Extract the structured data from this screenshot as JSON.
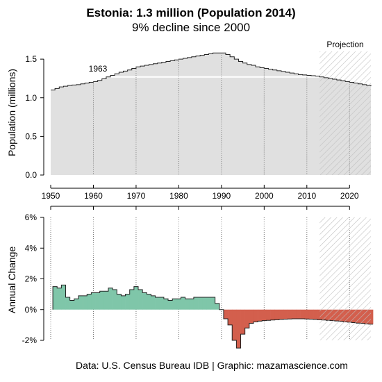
{
  "title": "Estonia: 1.3 million (Population 2014)",
  "subtitle": "9% decline since 2000",
  "caption": "Data: U.S. Census Bureau IDB | Graphic: mazamascience.com",
  "colors": {
    "population_fill": "#e0e0e0",
    "positive_change": "#7fc6a9",
    "negative_change": "#d35f4d",
    "projection_hatch": "#bfbfbf",
    "reference_line": "#ffffff"
  },
  "chart_data": [
    {
      "type": "area",
      "name": "population",
      "ylabel": "Population (millions)",
      "xlim": [
        1950,
        2025
      ],
      "ylim": [
        0,
        1.6
      ],
      "x_ticks": [
        "1950",
        "1960",
        "1970",
        "1980",
        "1990",
        "2000",
        "2010",
        "2020"
      ],
      "y_ticks": [
        "0.0",
        "0.5",
        "1.0",
        "1.5"
      ],
      "grid": "dotted vertical lines every 10 years",
      "projection_label": "Projection",
      "projection_start": 2013,
      "reference_label": "1963",
      "reference_value": 1.27,
      "x": [
        1950,
        1951,
        1952,
        1953,
        1954,
        1955,
        1956,
        1957,
        1958,
        1959,
        1960,
        1961,
        1962,
        1963,
        1964,
        1965,
        1966,
        1967,
        1968,
        1969,
        1970,
        1971,
        1972,
        1973,
        1974,
        1975,
        1976,
        1977,
        1978,
        1979,
        1980,
        1981,
        1982,
        1983,
        1984,
        1985,
        1986,
        1987,
        1988,
        1989,
        1990,
        1991,
        1992,
        1993,
        1994,
        1995,
        1996,
        1997,
        1998,
        1999,
        2000,
        2001,
        2002,
        2003,
        2004,
        2005,
        2006,
        2007,
        2008,
        2009,
        2010,
        2011,
        2012,
        2013,
        2014,
        2015,
        2016,
        2017,
        2018,
        2019,
        2020,
        2021,
        2022,
        2023,
        2024,
        2025
      ],
      "values": [
        1.1,
        1.12,
        1.14,
        1.15,
        1.16,
        1.165,
        1.17,
        1.18,
        1.19,
        1.2,
        1.21,
        1.225,
        1.245,
        1.27,
        1.29,
        1.31,
        1.33,
        1.345,
        1.36,
        1.38,
        1.4,
        1.41,
        1.42,
        1.43,
        1.44,
        1.45,
        1.46,
        1.47,
        1.48,
        1.49,
        1.5,
        1.51,
        1.52,
        1.53,
        1.54,
        1.55,
        1.56,
        1.57,
        1.58,
        1.58,
        1.58,
        1.56,
        1.53,
        1.5,
        1.47,
        1.45,
        1.43,
        1.42,
        1.4,
        1.39,
        1.38,
        1.37,
        1.36,
        1.35,
        1.34,
        1.33,
        1.32,
        1.31,
        1.3,
        1.295,
        1.29,
        1.285,
        1.28,
        1.27,
        1.26,
        1.25,
        1.24,
        1.23,
        1.22,
        1.21,
        1.2,
        1.19,
        1.18,
        1.17,
        1.16,
        1.15
      ]
    },
    {
      "type": "bar",
      "name": "annual_change",
      "ylabel": "Annual Change",
      "xlim": [
        1950,
        2025
      ],
      "ylim": [
        -2,
        6
      ],
      "y_ticks": [
        "6%",
        "4%",
        "2%",
        "0%",
        "-2%"
      ],
      "projection_start": 2013,
      "x": [
        1951,
        1952,
        1953,
        1954,
        1955,
        1956,
        1957,
        1958,
        1959,
        1960,
        1961,
        1962,
        1963,
        1964,
        1965,
        1966,
        1967,
        1968,
        1969,
        1970,
        1971,
        1972,
        1973,
        1974,
        1975,
        1976,
        1977,
        1978,
        1979,
        1980,
        1981,
        1982,
        1983,
        1984,
        1985,
        1986,
        1987,
        1988,
        1989,
        1990,
        1991,
        1992,
        1993,
        1994,
        1995,
        1996,
        1997,
        1998,
        1999,
        2000,
        2001,
        2002,
        2003,
        2004,
        2005,
        2006,
        2007,
        2008,
        2009,
        2010,
        2011,
        2012,
        2013,
        2014,
        2015,
        2016,
        2017,
        2018,
        2019,
        2020,
        2021,
        2022,
        2023,
        2024,
        2025
      ],
      "values": [
        1.5,
        1.4,
        1.6,
        0.8,
        0.6,
        0.7,
        0.9,
        0.9,
        1.0,
        1.1,
        1.1,
        1.2,
        1.2,
        1.4,
        1.3,
        1.0,
        0.9,
        1.0,
        1.3,
        1.5,
        1.3,
        1.1,
        1.0,
        0.9,
        0.8,
        0.8,
        0.7,
        0.6,
        0.7,
        0.7,
        0.8,
        0.7,
        0.7,
        0.8,
        0.8,
        0.8,
        0.8,
        0.8,
        0.4,
        0.0,
        -0.6,
        -1.0,
        -2.0,
        -2.5,
        -1.6,
        -1.2,
        -0.9,
        -0.8,
        -0.75,
        -0.72,
        -0.7,
        -0.68,
        -0.66,
        -0.64,
        -0.62,
        -0.61,
        -0.6,
        -0.6,
        -0.6,
        -0.61,
        -0.62,
        -0.64,
        -0.66,
        -0.68,
        -0.7,
        -0.72,
        -0.74,
        -0.77,
        -0.8,
        -0.82,
        -0.85,
        -0.88,
        -0.9,
        -0.93,
        -0.95
      ]
    }
  ]
}
